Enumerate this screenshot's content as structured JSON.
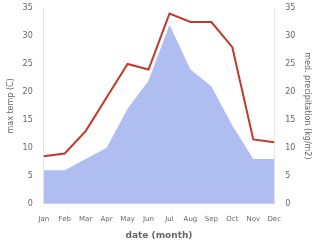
{
  "chart_data": {
    "type": "line",
    "categories": [
      "Jan",
      "Feb",
      "Mar",
      "Apr",
      "May",
      "Jun",
      "Jul",
      "Aug",
      "Sep",
      "Oct",
      "Nov",
      "Dec"
    ],
    "series": [
      {
        "type": "area",
        "color": "#b0bdf0",
        "axis": "y2",
        "values": [
          6,
          6,
          8,
          10,
          17,
          22,
          32,
          24,
          21,
          14,
          8,
          8
        ]
      },
      {
        "type": "line",
        "color": "#c0392b",
        "values": [
          8.5,
          9.0,
          13.0,
          19.0,
          25.0,
          24.0,
          34.0,
          32.5,
          32.5,
          28.0,
          11.5,
          11.0
        ]
      }
    ],
    "xlabel": "date (month)",
    "ylabel": "max temp (C)",
    "y2label": "med. precipitation (kg/m2)",
    "ylim": [
      0,
      35
    ],
    "yticks": [
      0,
      5,
      10,
      15,
      20,
      25,
      30,
      35
    ],
    "y2lim": [
      0,
      35
    ],
    "y2ticks": [
      0,
      5,
      10,
      15,
      20,
      25,
      30,
      35
    ],
    "grid": false
  }
}
